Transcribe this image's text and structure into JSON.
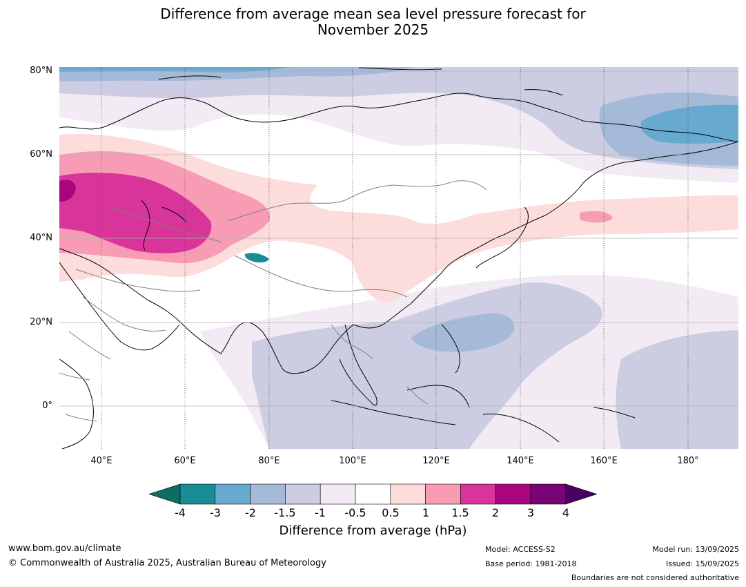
{
  "title": {
    "line1": "Difference from average mean sea level pressure forecast for",
    "line2": "November 2025"
  },
  "map": {
    "lat_ticks": [
      "80°N",
      "60°N",
      "40°N",
      "20°N",
      "0°"
    ],
    "lon_ticks": [
      "40°E",
      "60°E",
      "80°E",
      "100°E",
      "120°E",
      "140°E",
      "160°E",
      "180°"
    ],
    "extent": {
      "lon_min": 30,
      "lon_max": 192,
      "lat_min": -10,
      "lat_max": 81
    }
  },
  "colorbar": {
    "title": "Difference from average (hPa)",
    "labels": [
      "-4",
      "-3",
      "-2",
      "-1.5",
      "-1",
      "-0.5",
      "0.5",
      "1",
      "1.5",
      "2",
      "3",
      "4"
    ],
    "colors": [
      "#1a8c96",
      "#68a9d0",
      "#a5b9d8",
      "#cccde2",
      "#f2ebf4",
      "#ffffff",
      "#fddcdc",
      "#f89cb6",
      "#d8349a",
      "#a8057f",
      "#790476"
    ],
    "under_color": "#0e6d63",
    "over_color": "#4b0063"
  },
  "footer": {
    "website": "www.bom.gov.au/climate",
    "copyright": "© Commonwealth of Australia 2025, Australian Bureau of Meteorology",
    "model": "Model: ACCESS-S2",
    "base_period": "Base period: 1981-2018",
    "model_run": "Model run: 13/09/2025",
    "issued": "Issued: 15/09/2025",
    "disclaimer": "Boundaries are not considered authoritative"
  }
}
